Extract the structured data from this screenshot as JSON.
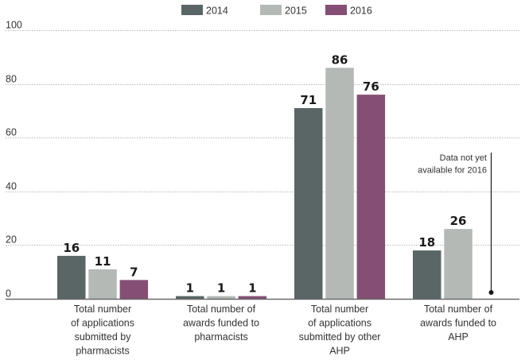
{
  "chart_data": {
    "type": "bar",
    "title": "",
    "xlabel": "",
    "ylabel": "",
    "ylim": [
      0,
      100
    ],
    "yticks": [
      0,
      20,
      40,
      60,
      80,
      100
    ],
    "grid": true,
    "legend_position": "top-center",
    "categories": [
      [
        "Total number",
        "of applications",
        "submitted by",
        "pharmacists"
      ],
      [
        "Total number of",
        "awards funded to",
        "pharmacists"
      ],
      [
        "Total number",
        "of applications",
        "submitted by other",
        "AHP"
      ],
      [
        "Total number of",
        "awards funded to",
        "AHP"
      ]
    ],
    "series": [
      {
        "name": "2014",
        "color": "#5a6565",
        "values": [
          16,
          1,
          71,
          18
        ]
      },
      {
        "name": "2015",
        "color": "#b5b9b6",
        "values": [
          11,
          1,
          86,
          26
        ]
      },
      {
        "name": "2016",
        "color": "#854f75",
        "values": [
          7,
          1,
          76,
          null
        ]
      }
    ],
    "annotations": [
      {
        "text": [
          "Data not yet",
          "available for 2016"
        ],
        "category_index": 3,
        "series": "2016"
      }
    ]
  }
}
